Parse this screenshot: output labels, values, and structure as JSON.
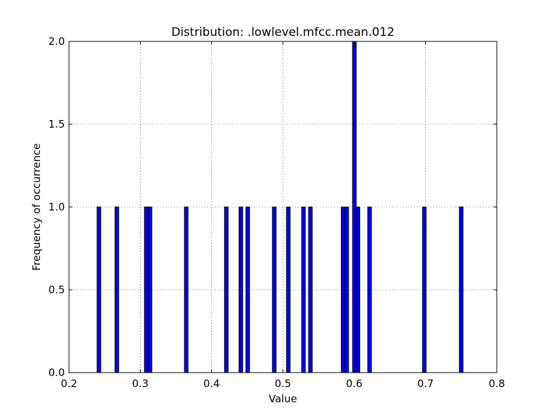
{
  "chart_data": {
    "type": "bar",
    "title": "Distribution: .lowlevel.mfcc.mean.012",
    "xlabel": "Value",
    "ylabel": "Frequency of occurrence",
    "xlim": [
      0.2,
      0.8
    ],
    "ylim": [
      0.0,
      2.0
    ],
    "xticks": [
      "0.2",
      "0.3",
      "0.4",
      "0.5",
      "0.6",
      "0.7",
      "0.8"
    ],
    "yticks": [
      "0.0",
      "0.5",
      "1.0",
      "1.5",
      "2.0"
    ],
    "grid": true,
    "bar_color": "#0000ff",
    "bin_width": 0.00513,
    "bars": [
      {
        "x": 0.2394,
        "value": 1
      },
      {
        "x": 0.2645,
        "value": 1
      },
      {
        "x": 0.3058,
        "value": 1
      },
      {
        "x": 0.311,
        "value": 1
      },
      {
        "x": 0.3619,
        "value": 1
      },
      {
        "x": 0.4181,
        "value": 1
      },
      {
        "x": 0.4384,
        "value": 1
      },
      {
        "x": 0.4481,
        "value": 1
      },
      {
        "x": 0.4853,
        "value": 1
      },
      {
        "x": 0.505,
        "value": 1
      },
      {
        "x": 0.5263,
        "value": 1
      },
      {
        "x": 0.536,
        "value": 1
      },
      {
        "x": 0.5819,
        "value": 1
      },
      {
        "x": 0.5869,
        "value": 1
      },
      {
        "x": 0.5977,
        "value": 2
      },
      {
        "x": 0.6027,
        "value": 1
      },
      {
        "x": 0.619,
        "value": 1
      },
      {
        "x": 0.6958,
        "value": 1
      },
      {
        "x": 0.7475,
        "value": 1
      }
    ]
  }
}
